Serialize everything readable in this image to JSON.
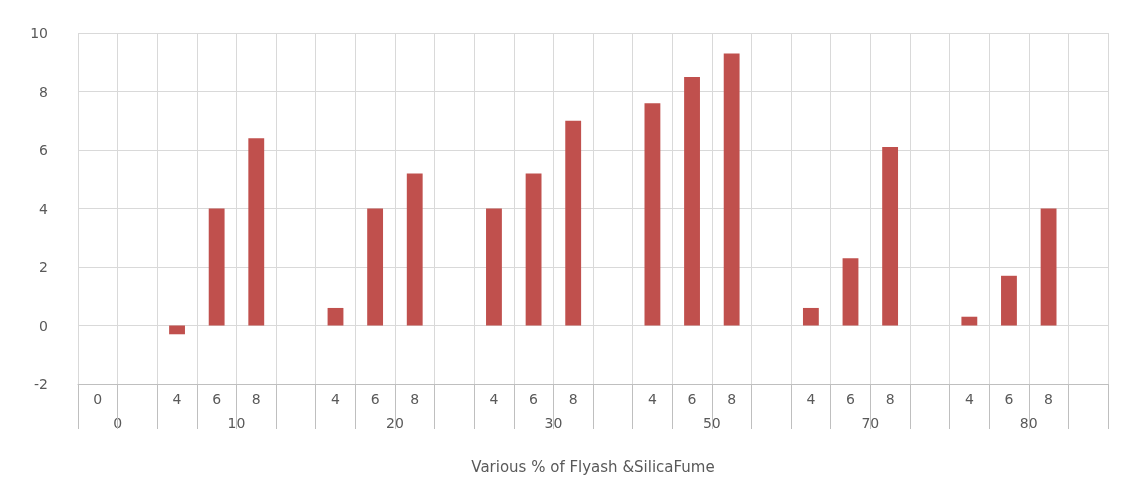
{
  "chart_data": {
    "type": "bar",
    "xlabel": "Various % of Flyash &SilicaFume",
    "categories": [
      "0",
      null,
      "4",
      "6",
      "8",
      null,
      "4",
      "6",
      "8",
      null,
      "4",
      "6",
      "8",
      null,
      "4",
      "6",
      "8",
      null,
      "4",
      "6",
      "8",
      null,
      "4",
      "6",
      "8",
      null
    ],
    "annotations": [
      "0",
      "10",
      "20",
      "30",
      "50",
      "70",
      "80"
    ],
    "series": [
      {
        "color": "#c0504d",
        "values": [
          null,
          null,
          -0.3,
          4.0,
          6.4,
          null,
          0.6,
          4.0,
          5.2,
          null,
          4.0,
          5.2,
          7.0,
          null,
          7.6,
          8.5,
          9.3,
          null,
          0.6,
          2.3,
          6.1,
          null,
          0.3,
          1.7,
          4.0,
          null
        ]
      }
    ],
    "ylim": [
      -2,
      10
    ],
    "yticks": [
      -2,
      0,
      2,
      4,
      6,
      8,
      10
    ],
    "grid": true
  }
}
